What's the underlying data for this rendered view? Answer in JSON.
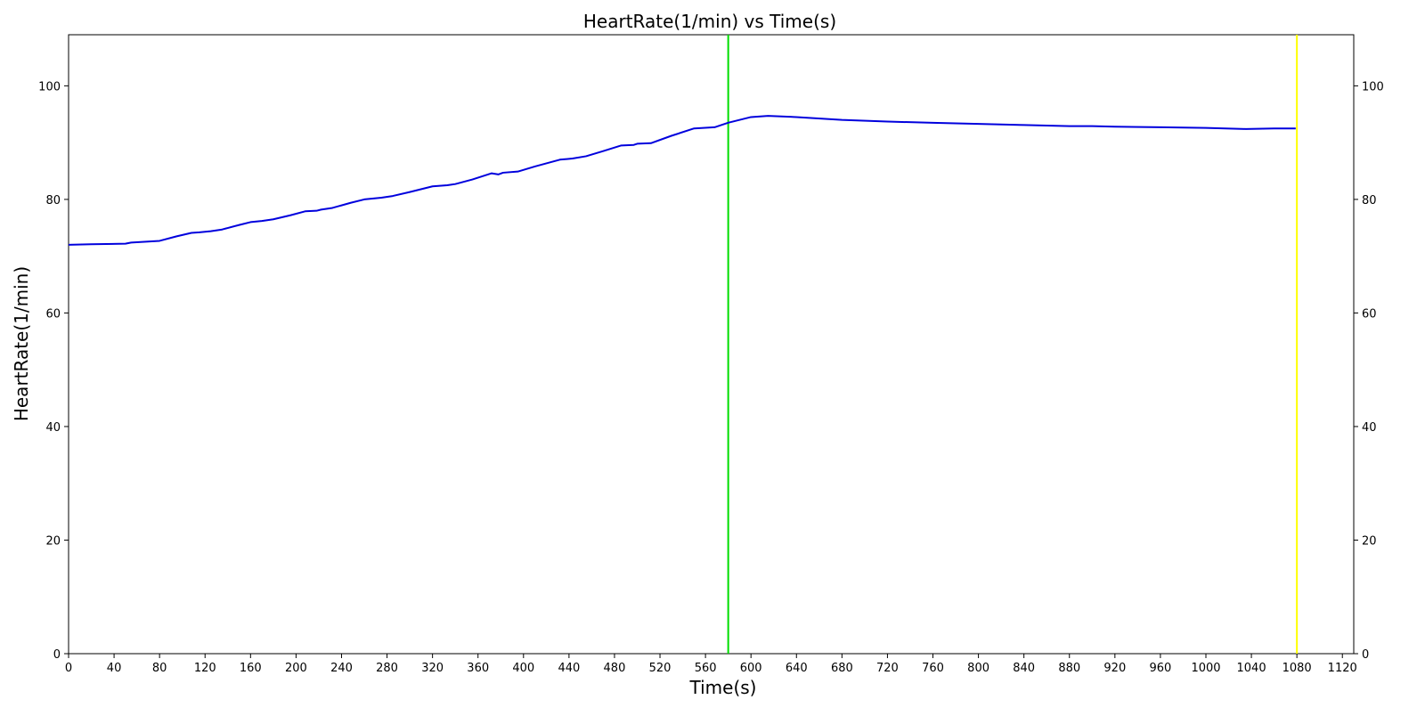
{
  "chart_data": {
    "type": "line",
    "title": "HeartRate(1/min) vs Time(s)",
    "xlabel": "Time(s)",
    "ylabel": "HeartRate(1/min)",
    "xlim": [
      0,
      1130
    ],
    "ylim": [
      0,
      109
    ],
    "x_ticks": [
      0,
      40,
      80,
      120,
      160,
      200,
      240,
      280,
      320,
      360,
      400,
      440,
      480,
      520,
      560,
      600,
      640,
      680,
      720,
      760,
      800,
      840,
      880,
      920,
      960,
      1000,
      1040,
      1080,
      1120
    ],
    "y_ticks": [
      0,
      20,
      40,
      60,
      80,
      100
    ],
    "y_right_ticks": [
      0,
      20,
      40,
      60,
      80,
      100
    ],
    "grid": false,
    "legend": "none",
    "series": [
      {
        "color": "#0000dd",
        "x": [
          0,
          20,
          50,
          55,
          80,
          95,
          108,
          115,
          125,
          135,
          150,
          160,
          170,
          180,
          195,
          208,
          218,
          222,
          232,
          248,
          260,
          270,
          275,
          285,
          300,
          320,
          333,
          340,
          355,
          372,
          378,
          382,
          395,
          410,
          432,
          443,
          455,
          470,
          486,
          497,
          500,
          512,
          530,
          550,
          568,
          580,
          600,
          615,
          640,
          680,
          720,
          760,
          800,
          840,
          880,
          900,
          920,
          960,
          1000,
          1035,
          1060,
          1079
        ],
        "y": [
          72.0,
          72.1,
          72.2,
          72.4,
          72.7,
          73.5,
          74.1,
          74.2,
          74.4,
          74.7,
          75.5,
          76.0,
          76.2,
          76.5,
          77.2,
          77.9,
          78.0,
          78.2,
          78.5,
          79.4,
          80.0,
          80.2,
          80.3,
          80.6,
          81.3,
          82.3,
          82.5,
          82.7,
          83.5,
          84.6,
          84.4,
          84.7,
          84.9,
          85.8,
          87.0,
          87.2,
          87.6,
          88.5,
          89.5,
          89.6,
          89.8,
          89.9,
          91.2,
          92.5,
          92.7,
          93.5,
          94.5,
          94.7,
          94.5,
          94.0,
          93.7,
          93.5,
          93.3,
          93.1,
          92.9,
          92.9,
          92.8,
          92.7,
          92.6,
          92.4,
          92.5,
          92.5
        ]
      }
    ],
    "vlines": [
      {
        "x": 580,
        "color": "#00dd00"
      },
      {
        "x": 1080,
        "color": "#ffff00"
      }
    ]
  }
}
